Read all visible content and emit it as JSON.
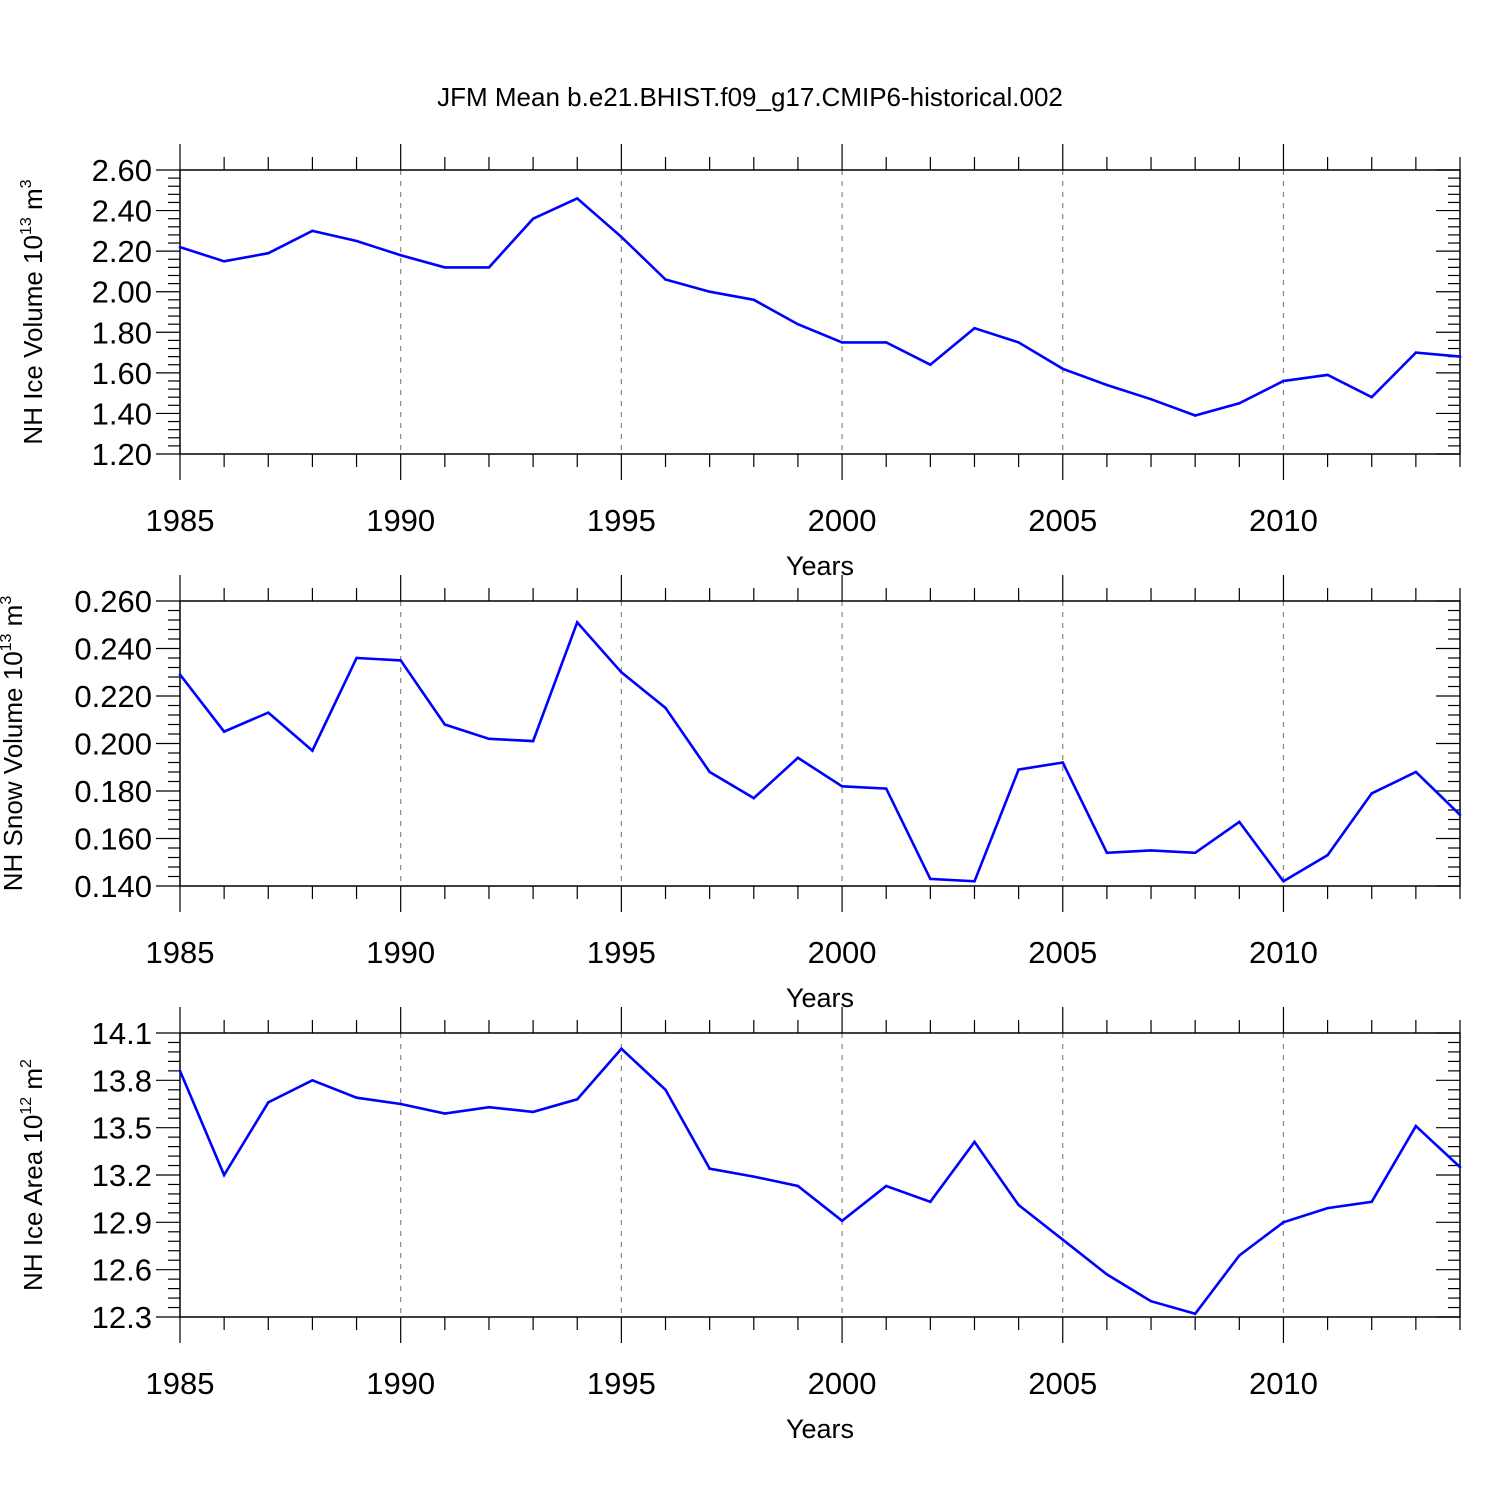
{
  "title": "JFM Mean b.e21.BHIST.f09_g17.CMIP6-historical.002",
  "chart_data": [
    {
      "type": "line",
      "id": "ice-volume",
      "ylabel": "NH Ice Volume 10",
      "ylabel_exp": "13",
      "ylabel_unit": "m",
      "ylabel_unit_exp": "3",
      "xlabel": "Years",
      "xlim": [
        1985,
        2014
      ],
      "ylim": [
        1.2,
        2.6
      ],
      "yticks": [
        "1.20",
        "1.40",
        "1.60",
        "1.80",
        "2.00",
        "2.20",
        "2.40",
        "2.60"
      ],
      "xticks": [
        "1985",
        "1990",
        "1995",
        "2000",
        "2005",
        "2010"
      ],
      "line_color": "#0000ff",
      "x": [
        1985,
        1986,
        1987,
        1988,
        1989,
        1990,
        1991,
        1992,
        1993,
        1994,
        1995,
        1996,
        1997,
        1998,
        1999,
        2000,
        2001,
        2002,
        2003,
        2004,
        2005,
        2006,
        2007,
        2008,
        2009,
        2010,
        2011,
        2012,
        2013,
        2014
      ],
      "values": [
        2.22,
        2.15,
        2.19,
        2.3,
        2.25,
        2.18,
        2.12,
        2.12,
        2.36,
        2.46,
        2.27,
        2.06,
        2.0,
        1.96,
        1.84,
        1.75,
        1.75,
        1.64,
        1.82,
        1.75,
        1.62,
        1.54,
        1.47,
        1.39,
        1.45,
        1.56,
        1.59,
        1.48,
        1.7,
        1.68
      ]
    },
    {
      "type": "line",
      "id": "snow-volume",
      "ylabel": "NH Snow Volume 10",
      "ylabel_exp": "13",
      "ylabel_unit": "m",
      "ylabel_unit_exp": "3",
      "xlabel": "Years",
      "xlim": [
        1985,
        2014
      ],
      "ylim": [
        0.14,
        0.26
      ],
      "yticks": [
        "0.140",
        "0.160",
        "0.180",
        "0.200",
        "0.220",
        "0.240",
        "0.260"
      ],
      "xticks": [
        "1985",
        "1990",
        "1995",
        "2000",
        "2005",
        "2010"
      ],
      "line_color": "#0000ff",
      "x": [
        1985,
        1986,
        1987,
        1988,
        1989,
        1990,
        1991,
        1992,
        1993,
        1994,
        1995,
        1996,
        1997,
        1998,
        1999,
        2000,
        2001,
        2002,
        2003,
        2004,
        2005,
        2006,
        2007,
        2008,
        2009,
        2010,
        2011,
        2012,
        2013,
        2014
      ],
      "values": [
        0.229,
        0.205,
        0.213,
        0.197,
        0.236,
        0.235,
        0.208,
        0.202,
        0.201,
        0.251,
        0.23,
        0.215,
        0.188,
        0.177,
        0.194,
        0.182,
        0.181,
        0.143,
        0.142,
        0.189,
        0.192,
        0.154,
        0.155,
        0.154,
        0.167,
        0.142,
        0.153,
        0.179,
        0.188,
        0.17
      ]
    },
    {
      "type": "line",
      "id": "ice-area",
      "ylabel": "NH Ice Area 10",
      "ylabel_exp": "12",
      "ylabel_unit": "m",
      "ylabel_unit_exp": "2",
      "xlabel": "Years",
      "xlim": [
        1985,
        2014
      ],
      "ylim": [
        12.3,
        14.1
      ],
      "yticks": [
        "12.3",
        "12.6",
        "12.9",
        "13.2",
        "13.5",
        "13.8",
        "14.1"
      ],
      "xticks": [
        "1985",
        "1990",
        "1995",
        "2000",
        "2005",
        "2010"
      ],
      "line_color": "#0000ff",
      "x": [
        1985,
        1986,
        1987,
        1988,
        1989,
        1990,
        1991,
        1992,
        1993,
        1994,
        1995,
        1996,
        1997,
        1998,
        1999,
        2000,
        2001,
        2002,
        2003,
        2004,
        2005,
        2006,
        2007,
        2008,
        2009,
        2010,
        2011,
        2012,
        2013,
        2014
      ],
      "values": [
        13.86,
        13.2,
        13.66,
        13.8,
        13.69,
        13.65,
        13.59,
        13.63,
        13.6,
        13.68,
        14.0,
        13.74,
        13.24,
        13.19,
        13.13,
        12.91,
        13.13,
        13.03,
        13.41,
        13.01,
        12.79,
        12.57,
        12.4,
        12.32,
        12.69,
        12.9,
        12.99,
        13.03,
        13.51,
        13.25
      ]
    }
  ]
}
